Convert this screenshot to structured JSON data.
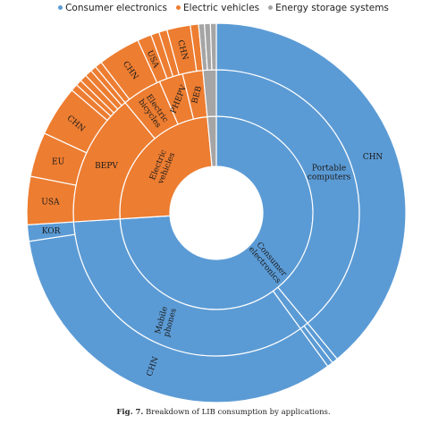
{
  "chart_data": {
    "type": "sunburst",
    "legend": {
      "position": "top",
      "items": [
        {
          "label": "Consumer electronics",
          "color": "#5b9bd5"
        },
        {
          "label": "Electric vehicles",
          "color": "#ed7d31"
        },
        {
          "label": "Energy storage systems",
          "color": "#a5a5a5"
        }
      ]
    },
    "rings": {
      "inner": [
        {
          "name": "Consumer electronics",
          "value": 74,
          "color": "#5b9bd5",
          "label": "Consumer electronics"
        },
        {
          "name": "Electric vehicles",
          "value": 24.5,
          "color": "#ed7d31",
          "label": "Electric vehicles"
        },
        {
          "name": "Energy storage systems",
          "value": 1.5,
          "color": "#a5a5a5",
          "label": ""
        }
      ],
      "middle": [
        {
          "name": "Portable computers",
          "value": 39,
          "color": "#5b9bd5",
          "label": "Portable computers"
        },
        {
          "name": "other consumer electronics",
          "value": 1,
          "color": "#5b9bd5",
          "label": ""
        },
        {
          "name": "Mobile phones",
          "value": 34,
          "color": "#5b9bd5",
          "label": "Mobile phones"
        },
        {
          "name": "BEPV",
          "value": 15,
          "color": "#ed7d31",
          "label": "BEPV"
        },
        {
          "name": "Electric bicycles",
          "value": 4.5,
          "color": "#ed7d31",
          "label": "Electric bicycles"
        },
        {
          "name": "PHEPV",
          "value": 2.7,
          "color": "#ed7d31",
          "label": "PHEPV"
        },
        {
          "name": "BEB",
          "value": 2.3,
          "color": "#ed7d31",
          "label": "BEB"
        },
        {
          "name": "ESS",
          "value": 1.5,
          "color": "#a5a5a5",
          "label": ""
        }
      ],
      "outer": [
        {
          "name": "CHN",
          "value": 39,
          "color": "#5b9bd5",
          "label": "CHN"
        },
        {
          "name": "other",
          "value": 0.5,
          "color": "#5b9bd5",
          "label": ""
        },
        {
          "name": "other",
          "value": 0.5,
          "color": "#5b9bd5",
          "label": ""
        },
        {
          "name": "CHN",
          "value": 32.6,
          "color": "#5b9bd5",
          "label": "CHN"
        },
        {
          "name": "KOR",
          "value": 1.4,
          "color": "#5b9bd5",
          "label": "KOR"
        },
        {
          "name": "USA",
          "value": 4.1,
          "color": "#ed7d31",
          "label": "USA"
        },
        {
          "name": "EU",
          "value": 3.8,
          "color": "#ed7d31",
          "label": "EU"
        },
        {
          "name": "CHN",
          "value": 4.3,
          "color": "#ed7d31",
          "label": "CHN"
        },
        {
          "name": "other",
          "value": 0.6,
          "color": "#ed7d31",
          "label": ""
        },
        {
          "name": "other",
          "value": 0.5,
          "color": "#ed7d31",
          "label": ""
        },
        {
          "name": "other",
          "value": 0.6,
          "color": "#ed7d31",
          "label": ""
        },
        {
          "name": "other",
          "value": 0.6,
          "color": "#ed7d31",
          "label": ""
        },
        {
          "name": "other",
          "value": 0.5,
          "color": "#ed7d31",
          "label": ""
        },
        {
          "name": "other",
          "value": 0.6,
          "color": "#ed7d31",
          "label": ""
        },
        {
          "name": "CHN",
          "value": 3.6,
          "color": "#ed7d31",
          "label": "CHN"
        },
        {
          "name": "USA",
          "value": 1.2,
          "color": "#ed7d31",
          "label": "USA"
        },
        {
          "name": "other",
          "value": 0.7,
          "color": "#ed7d31",
          "label": ""
        },
        {
          "name": "other",
          "value": 0.7,
          "color": "#ed7d31",
          "label": ""
        },
        {
          "name": "CHN",
          "value": 2.0,
          "color": "#ed7d31",
          "label": "CHN"
        },
        {
          "name": "other",
          "value": 0.7,
          "color": "#ed7d31",
          "label": ""
        },
        {
          "name": "ESS",
          "value": 0.5,
          "color": "#a5a5a5",
          "label": ""
        },
        {
          "name": "ESS",
          "value": 0.5,
          "color": "#a5a5a5",
          "label": ""
        },
        {
          "name": "ESS",
          "value": 0.5,
          "color": "#a5a5a5",
          "label": ""
        }
      ]
    }
  },
  "caption": {
    "fig": "Fig. 7.",
    "text": " Breakdown of LIB consumption by applications."
  }
}
